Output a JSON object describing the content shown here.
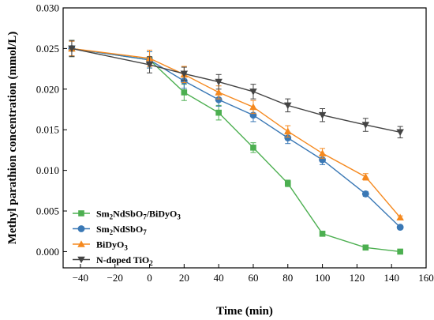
{
  "chart_data": {
    "type": "line",
    "xlabel": "Time (min)",
    "ylabel": "Methyl parathion concentration (mmol/L)",
    "xlim": [
      -50,
      160
    ],
    "ylim": [
      -0.002,
      0.03
    ],
    "x_ticks": [
      -40,
      -20,
      0,
      20,
      40,
      60,
      80,
      100,
      120,
      140,
      160
    ],
    "y_ticks": [
      0.0,
      0.005,
      0.01,
      0.015,
      0.02,
      0.025,
      0.03
    ],
    "y_tick_labels": [
      "0.000",
      "0.005",
      "0.010",
      "0.015",
      "0.020",
      "0.025",
      "0.030"
    ],
    "x": [
      -45,
      0,
      20,
      40,
      60,
      80,
      100,
      125,
      145
    ],
    "legend_position": "bottom-left",
    "grid": false,
    "series": [
      {
        "name": "Sm2NdSbO7/BiDyO3",
        "label_parts": [
          {
            "t": "Sm",
            "s": false
          },
          {
            "t": "2",
            "s": true
          },
          {
            "t": "NdSbO",
            "s": false
          },
          {
            "t": "7",
            "s": true
          },
          {
            "t": "/BiDyO",
            "s": false
          },
          {
            "t": "3",
            "s": true
          }
        ],
        "color": "#4caf50",
        "marker": "square",
        "values": [
          0.025,
          0.0236,
          0.0196,
          0.0171,
          0.0128,
          0.0084,
          0.0022,
          0.0005,
          0.0
        ],
        "errors": [
          0.001,
          0.001,
          0.001,
          0.0009,
          0.0006,
          0.0004,
          0.0002,
          0.0001,
          0.0001
        ]
      },
      {
        "name": "Sm2NdSbO7",
        "label_parts": [
          {
            "t": "Sm",
            "s": false
          },
          {
            "t": "2",
            "s": true
          },
          {
            "t": "NdSbO",
            "s": false
          },
          {
            "t": "7",
            "s": true
          }
        ],
        "color": "#3a78b5",
        "marker": "circle",
        "values": [
          0.025,
          0.0236,
          0.021,
          0.0187,
          0.0168,
          0.014,
          0.0113,
          0.0071,
          0.003
        ],
        "errors": [
          0.0009,
          0.001,
          0.0009,
          0.0008,
          0.0008,
          0.0007,
          0.0006,
          0.0003,
          0.0002
        ]
      },
      {
        "name": "BiDyO3",
        "label_parts": [
          {
            "t": "BiDyO",
            "s": false
          },
          {
            "t": "3",
            "s": true
          }
        ],
        "color": "#f5891f",
        "marker": "triangle-up",
        "values": [
          0.025,
          0.0238,
          0.0218,
          0.0196,
          0.0178,
          0.0148,
          0.0121,
          0.0092,
          0.0042
        ],
        "errors": [
          0.0009,
          0.001,
          0.001,
          0.0008,
          0.0008,
          0.0007,
          0.0006,
          0.0004,
          0.0002
        ]
      },
      {
        "name": "N-doped TiO2",
        "label_parts": [
          {
            "t": "N-doped TiO",
            "s": false
          },
          {
            "t": "2",
            "s": true
          }
        ],
        "color": "#444444",
        "marker": "triangle-down",
        "values": [
          0.025,
          0.023,
          0.0219,
          0.0209,
          0.0197,
          0.018,
          0.0168,
          0.0156,
          0.0147
        ],
        "errors": [
          0.001,
          0.001,
          0.0008,
          0.0009,
          0.0009,
          0.0008,
          0.0008,
          0.0008,
          0.0007
        ]
      }
    ]
  }
}
